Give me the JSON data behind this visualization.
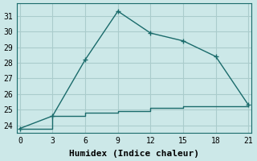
{
  "title": "",
  "xlabel": "Humidex (Indice chaleur)",
  "ylabel": "",
  "background_color": "#cce8e8",
  "grid_color": "#aacccc",
  "line_color": "#1a6b6b",
  "x_ticks": [
    0,
    3,
    6,
    9,
    12,
    15,
    18,
    21
  ],
  "ylim": [
    23.5,
    31.8
  ],
  "xlim": [
    -0.3,
    21.3
  ],
  "series1_x": [
    0,
    3,
    6,
    9,
    12,
    15,
    18,
    21
  ],
  "series1_y": [
    23.8,
    24.6,
    28.2,
    31.3,
    29.9,
    29.4,
    28.4,
    25.3
  ],
  "series2_x": [
    0,
    3,
    6,
    9,
    12,
    15,
    18,
    21
  ],
  "series2_y": [
    23.8,
    24.6,
    24.8,
    24.9,
    25.1,
    25.2,
    25.2,
    25.3
  ],
  "yticks": [
    24,
    25,
    26,
    27,
    28,
    29,
    30,
    31
  ],
  "markersize": 3.0,
  "linewidth": 1.0,
  "font_family": "monospace",
  "tick_fontsize": 7,
  "xlabel_fontsize": 8
}
